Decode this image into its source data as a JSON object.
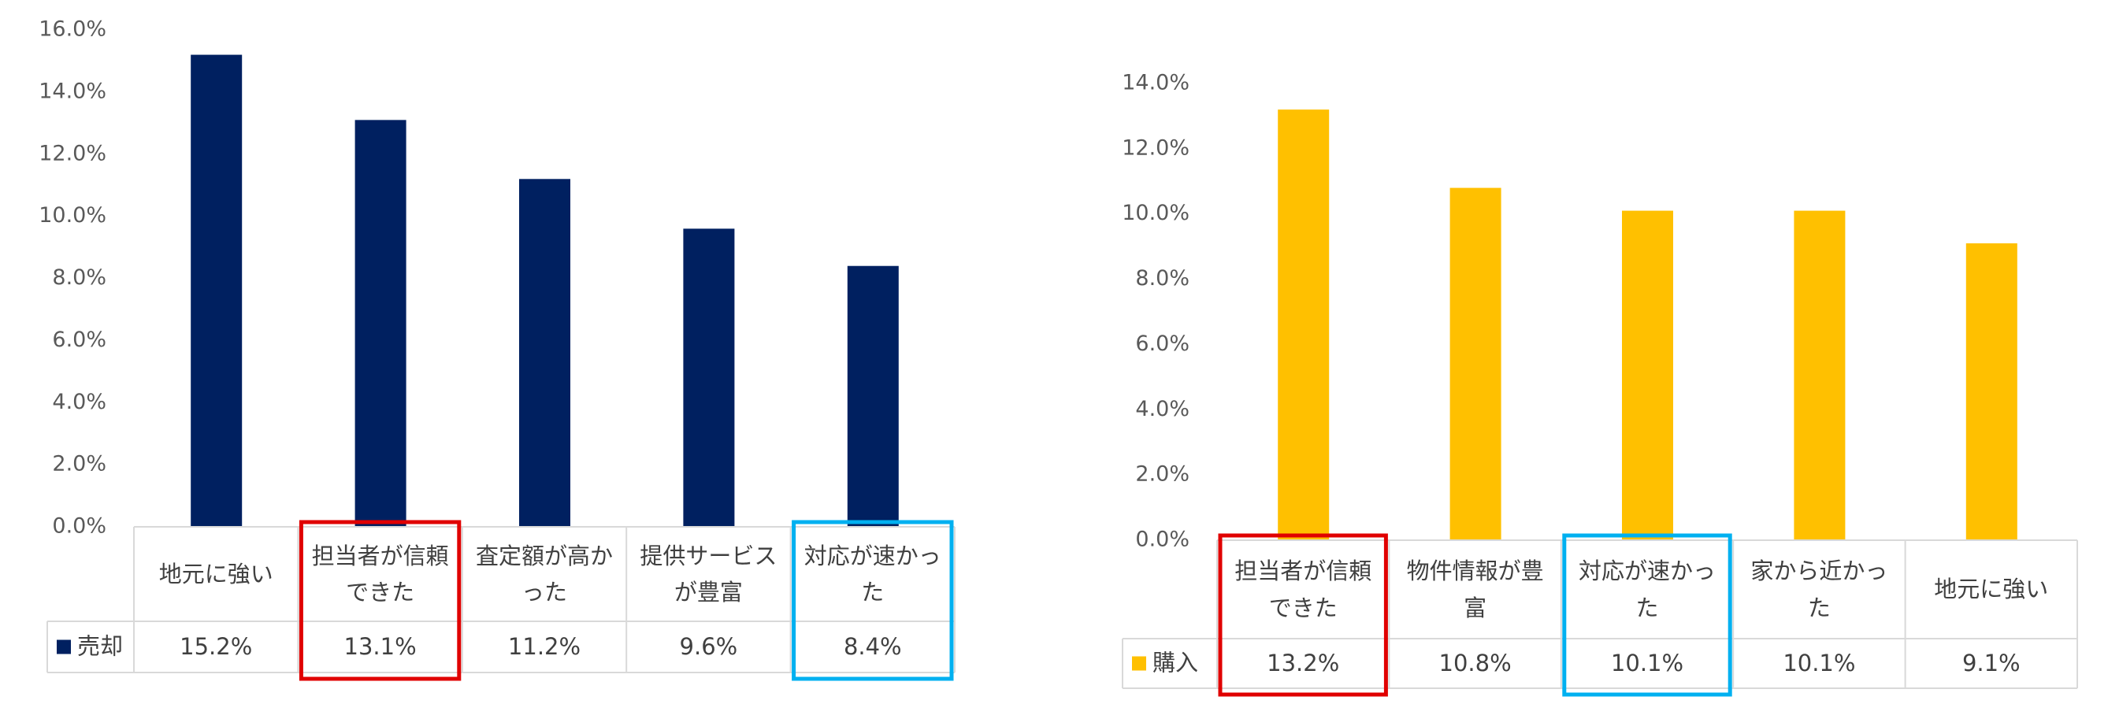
{
  "chart_data": [
    {
      "type": "bar",
      "categories": [
        "地元に強い",
        "担当者が信頼できた",
        "査定額が高かった",
        "提供サービスが豊富",
        "対応が速かった"
      ],
      "series": [
        {
          "name": "売却",
          "color": "#002060",
          "values": [
            15.2,
            13.1,
            11.2,
            9.6,
            8.4
          ],
          "value_labels": [
            "15.2%",
            "13.1%",
            "11.2%",
            "9.6%",
            "8.4%"
          ]
        }
      ],
      "ylim": [
        0,
        16
      ],
      "yticks": [
        {
          "value": 0,
          "label": "0.0%"
        },
        {
          "value": 2,
          "label": "2.0%"
        },
        {
          "value": 4,
          "label": "4.0%"
        },
        {
          "value": 6,
          "label": "6.0%"
        },
        {
          "value": 8,
          "label": "8.0%"
        },
        {
          "value": 10,
          "label": "10.0%"
        },
        {
          "value": 12,
          "label": "12.0%"
        },
        {
          "value": 14,
          "label": "14.0%"
        },
        {
          "value": 16,
          "label": "16.0%"
        }
      ]
    },
    {
      "type": "bar",
      "categories": [
        "担当者が信頼できた",
        "物件情報が豊富",
        "対応が速かった",
        "家から近かった",
        "地元に強い"
      ],
      "series": [
        {
          "name": "購入",
          "color": "#ffc000",
          "values": [
            13.2,
            10.8,
            10.1,
            10.1,
            9.1
          ],
          "value_labels": [
            "13.2%",
            "10.8%",
            "10.1%",
            "10.1%",
            "9.1%"
          ]
        }
      ],
      "ylim": [
        0,
        14
      ],
      "yticks": [
        {
          "value": 0,
          "label": "0.0%"
        },
        {
          "value": 2,
          "label": "2.0%"
        },
        {
          "value": 4,
          "label": "4.0%"
        },
        {
          "value": 6,
          "label": "6.0%"
        },
        {
          "value": 8,
          "label": "8.0%"
        },
        {
          "value": 10,
          "label": "10.0%"
        },
        {
          "value": 12,
          "label": "12.0%"
        },
        {
          "value": 14,
          "label": "14.0%"
        }
      ]
    }
  ]
}
